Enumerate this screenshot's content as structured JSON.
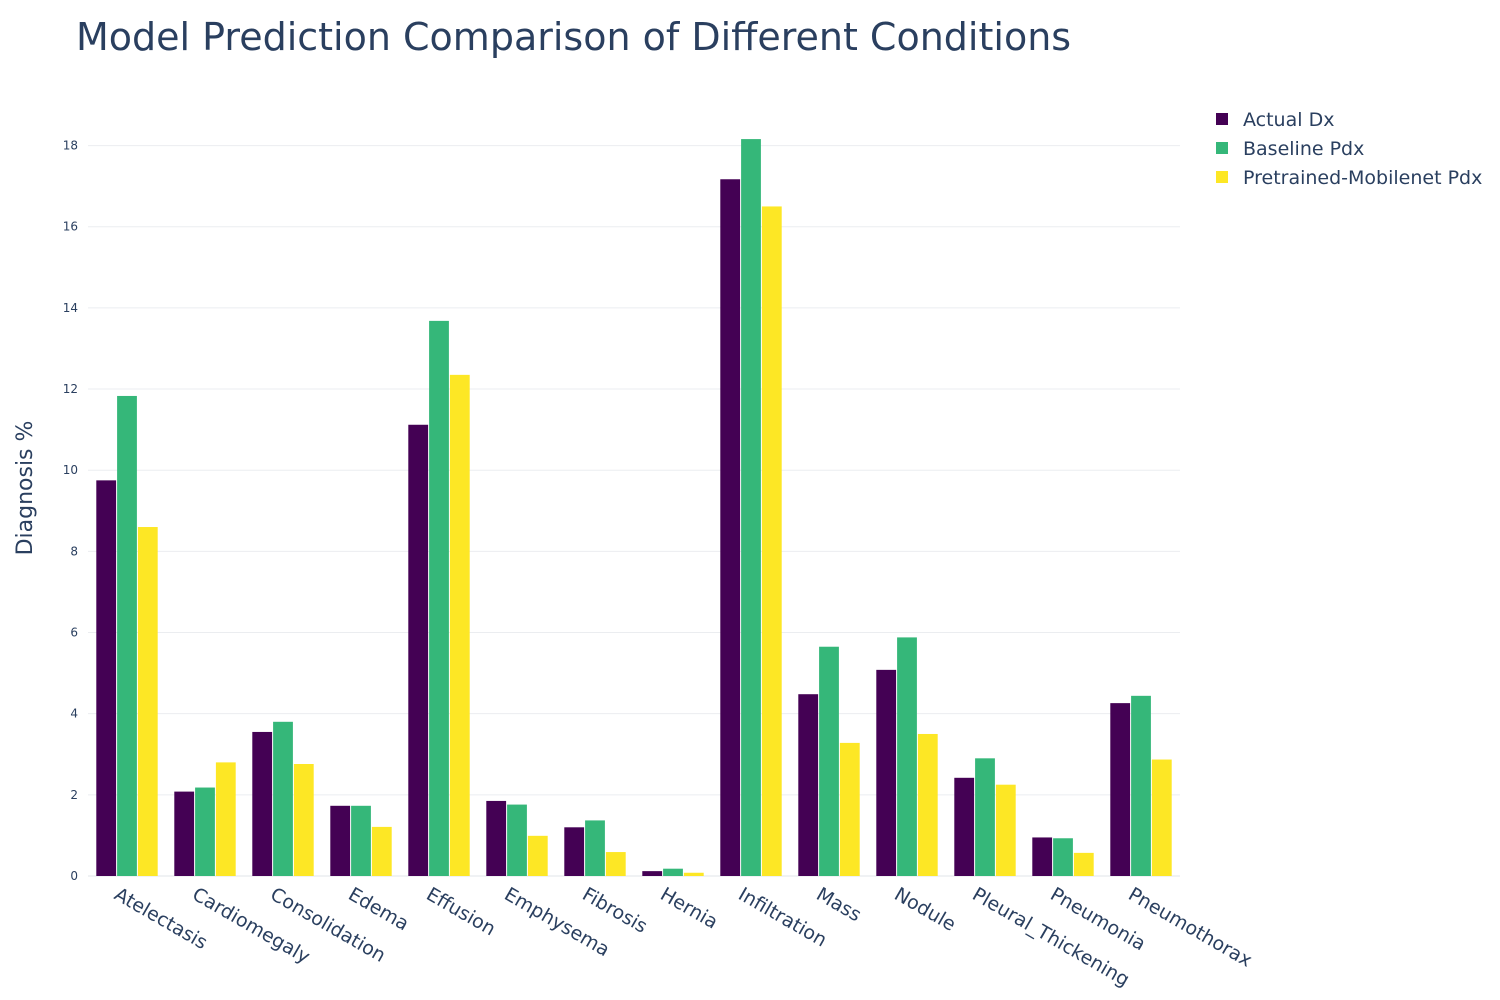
{
  "chart_data": {
    "type": "bar",
    "title": "Model Prediction Comparison of Different Conditions",
    "ylabel": "Diagnosis %",
    "xlabel": "",
    "ylim": [
      0,
      19
    ],
    "yticks": [
      0,
      2,
      4,
      6,
      8,
      10,
      12,
      14,
      16,
      18
    ],
    "grid": true,
    "legend_position": "top-right",
    "categories": [
      "Atelectasis",
      "Cardiomegaly",
      "Consolidation",
      "Edema",
      "Effusion",
      "Emphysema",
      "Fibrosis",
      "Hernia",
      "Infiltration",
      "Mass",
      "Nodule",
      "Pleural_Thickening",
      "Pneumonia",
      "Pneumothorax"
    ],
    "series": [
      {
        "name": "Actual Dx",
        "color": "#440154",
        "values": [
          9.75,
          2.08,
          3.55,
          1.73,
          11.12,
          1.85,
          1.2,
          0.12,
          17.17,
          4.48,
          5.08,
          2.42,
          0.95,
          4.26
        ]
      },
      {
        "name": "Baseline Pdx",
        "color": "#35b779",
        "values": [
          11.83,
          2.18,
          3.8,
          1.73,
          13.68,
          1.76,
          1.37,
          0.18,
          18.16,
          5.65,
          5.88,
          2.9,
          0.93,
          4.44
        ]
      },
      {
        "name": "Pretrained-Mobilenet Pdx",
        "color": "#fde725",
        "values": [
          8.6,
          2.8,
          2.76,
          1.21,
          12.35,
          0.99,
          0.59,
          0.08,
          16.5,
          3.28,
          3.5,
          2.25,
          0.57,
          2.87
        ]
      }
    ]
  }
}
